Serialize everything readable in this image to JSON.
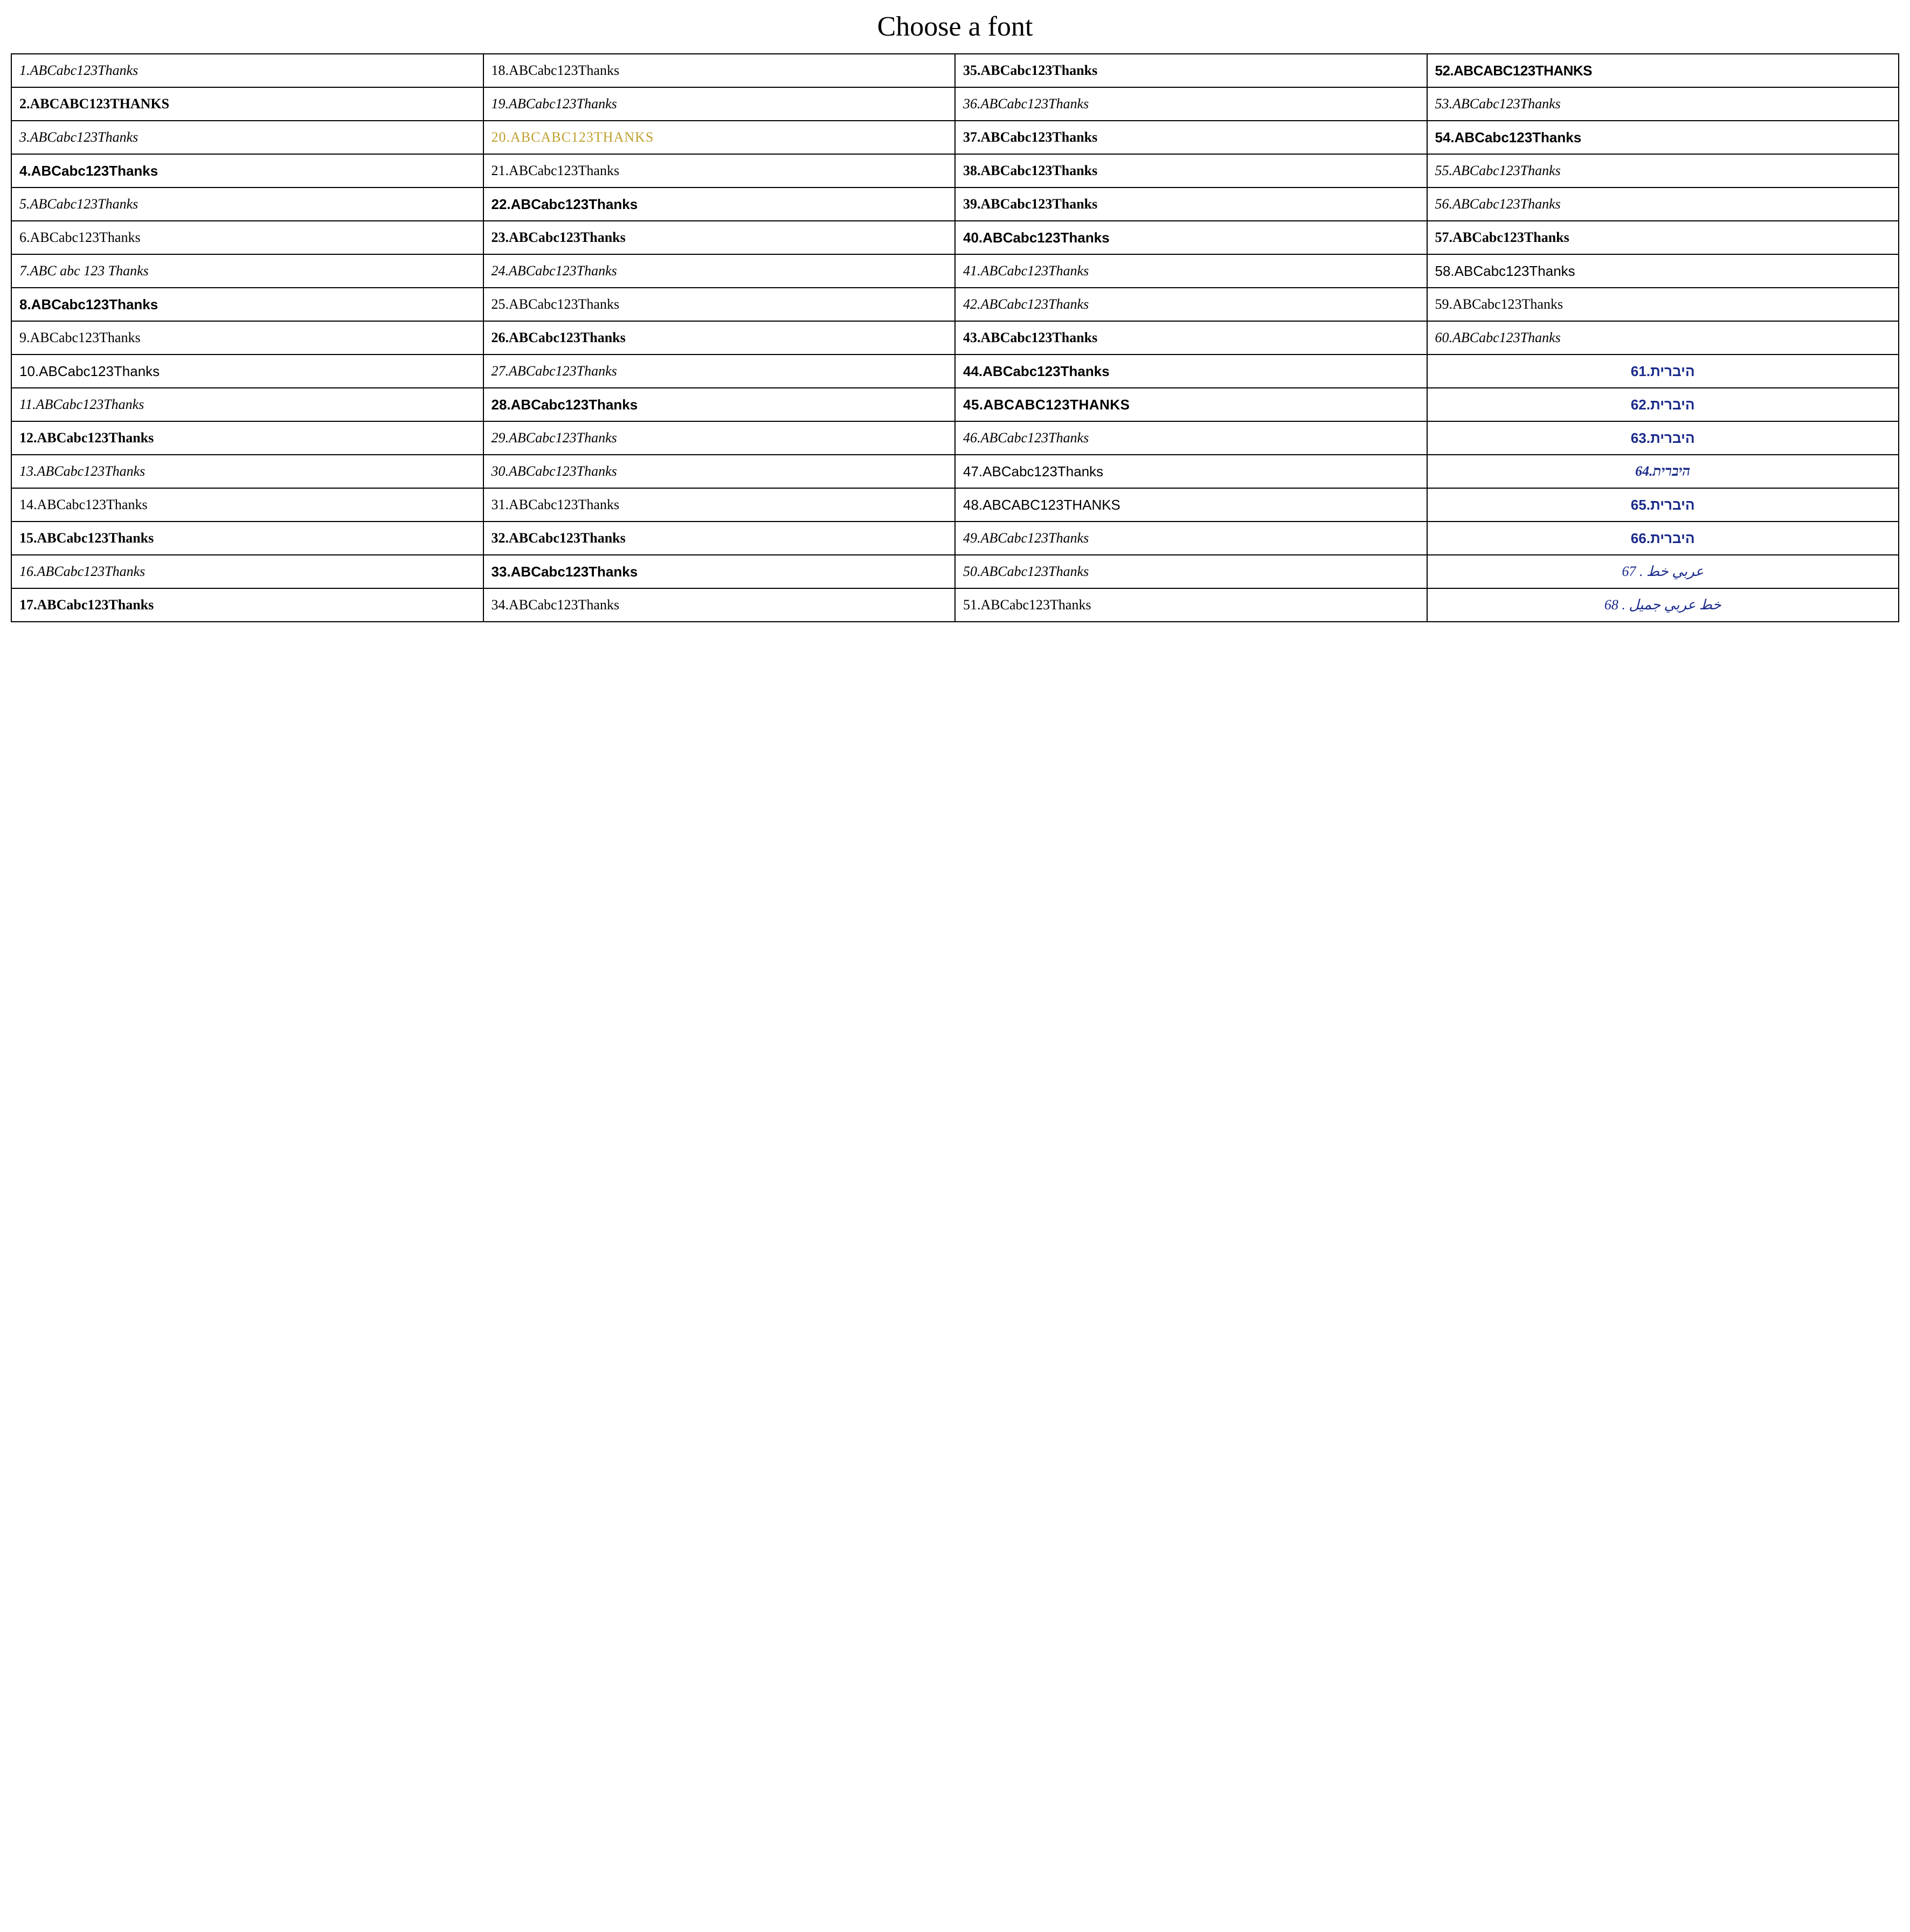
{
  "title": "Choose a font",
  "columns": 4,
  "rows": 17,
  "colors": {
    "text_default": "#000000",
    "text_gold": "#C0A030",
    "text_blue": "#1a2a8a",
    "border": "#000000",
    "background": "#ffffff"
  },
  "cells": [
    {
      "row": 0,
      "col": 0,
      "num": "1",
      "label": "1.ABCabc123Thanks",
      "styleClass": "f-script1"
    },
    {
      "row": 0,
      "col": 1,
      "num": "18",
      "label": "18.ABCabc123Thanks",
      "styleClass": "f-serif"
    },
    {
      "row": 0,
      "col": 2,
      "num": "35",
      "label": "35.ABCabc123Thanks",
      "styleClass": "f-bold-serif"
    },
    {
      "row": 0,
      "col": 3,
      "num": "52",
      "label": "52.ABCABC123THANKS",
      "styleClass": "f-bold-condense"
    },
    {
      "row": 1,
      "col": 0,
      "num": "2",
      "label": "2.ABCABC123THANKS",
      "styleClass": "f-gothic"
    },
    {
      "row": 1,
      "col": 1,
      "num": "19",
      "label": "19.ABCabc123Thanks",
      "styleClass": "f-script2"
    },
    {
      "row": 1,
      "col": 2,
      "num": "36",
      "label": "36.ABCabc123Thanks",
      "styleClass": "f-italic"
    },
    {
      "row": 1,
      "col": 3,
      "num": "53",
      "label": "53.ABCabc123Thanks",
      "styleClass": "f-italic"
    },
    {
      "row": 2,
      "col": 0,
      "num": "3",
      "label": "3.ABCabc123Thanks",
      "styleClass": "f-script1"
    },
    {
      "row": 2,
      "col": 1,
      "num": "20",
      "label": "20.ABCABC123THANKS",
      "styleClass": "f-gold"
    },
    {
      "row": 2,
      "col": 2,
      "num": "37",
      "label": "37.ABCabc123Thanks",
      "styleClass": "f-bold-serif"
    },
    {
      "row": 2,
      "col": 3,
      "num": "54",
      "label": "54.ABCabc123Thanks",
      "styleClass": "f-boldsans"
    },
    {
      "row": 3,
      "col": 0,
      "num": "4",
      "label": "4.ABCabc123Thanks",
      "styleClass": "f-boldsans"
    },
    {
      "row": 3,
      "col": 1,
      "num": "21",
      "label": "21.ABCabc123Thanks",
      "styleClass": "f-hand"
    },
    {
      "row": 3,
      "col": 2,
      "num": "38",
      "label": "38.ABCabc123Thanks",
      "styleClass": "f-bold-serif"
    },
    {
      "row": 3,
      "col": 3,
      "num": "55",
      "label": "55.ABCabc123Thanks",
      "styleClass": "f-script1"
    },
    {
      "row": 4,
      "col": 0,
      "num": "5",
      "label": "5.ABCabc123Thanks",
      "styleClass": "f-script2"
    },
    {
      "row": 4,
      "col": 1,
      "num": "22",
      "label": "22.ABCabc123Thanks",
      "styleClass": "f-boldsans"
    },
    {
      "row": 4,
      "col": 2,
      "num": "39",
      "label": "39.ABCabc123Thanks",
      "styleClass": "f-bold-serif"
    },
    {
      "row": 4,
      "col": 3,
      "num": "56",
      "label": "56.ABCabc123Thanks",
      "styleClass": "f-script2"
    },
    {
      "row": 5,
      "col": 0,
      "num": "6",
      "label": "6.ABCabc123Thanks",
      "styleClass": "f-hand"
    },
    {
      "row": 5,
      "col": 1,
      "num": "23",
      "label": "23.ABCabc123Thanks",
      "styleClass": "f-bold-serif"
    },
    {
      "row": 5,
      "col": 2,
      "num": "40",
      "label": "40.ABCabc123Thanks",
      "styleClass": "f-boldsans"
    },
    {
      "row": 5,
      "col": 3,
      "num": "57",
      "label": "57.ABCabc123Thanks",
      "styleClass": "f-bold-serif"
    },
    {
      "row": 6,
      "col": 0,
      "num": "7",
      "label": "7.ABC abc 123 Thanks",
      "styleClass": "f-thin-script"
    },
    {
      "row": 6,
      "col": 1,
      "num": "24",
      "label": "24.ABCabc123Thanks",
      "styleClass": "f-script1"
    },
    {
      "row": 6,
      "col": 2,
      "num": "41",
      "label": "41.ABCabc123Thanks",
      "styleClass": "f-script1"
    },
    {
      "row": 6,
      "col": 3,
      "num": "58",
      "label": "58.ABCabc123Thanks",
      "styleClass": "f-sans"
    },
    {
      "row": 7,
      "col": 0,
      "num": "8",
      "label": "8.ABCabc123Thanks",
      "styleClass": "f-boldsans"
    },
    {
      "row": 7,
      "col": 1,
      "num": "25",
      "label": "25.ABCabc123Thanks",
      "styleClass": "f-hand"
    },
    {
      "row": 7,
      "col": 2,
      "num": "42",
      "label": "42.ABCabc123Thanks",
      "styleClass": "f-script2"
    },
    {
      "row": 7,
      "col": 3,
      "num": "59",
      "label": "59.ABCabc123Thanks",
      "styleClass": "f-hand"
    },
    {
      "row": 8,
      "col": 0,
      "num": "9",
      "label": "9.ABCabc123Thanks",
      "styleClass": "f-hand"
    },
    {
      "row": 8,
      "col": 1,
      "num": "26",
      "label": "26.ABCabc123Thanks",
      "styleClass": "f-bold-serif"
    },
    {
      "row": 8,
      "col": 2,
      "num": "43",
      "label": "43.ABCabc123Thanks",
      "styleClass": "f-bold-serif"
    },
    {
      "row": 8,
      "col": 3,
      "num": "60",
      "label": "60.ABCabc123Thanks",
      "styleClass": "f-thin-script"
    },
    {
      "row": 9,
      "col": 0,
      "num": "10",
      "label": "10.ABCabc123Thanks",
      "styleClass": "f-sans"
    },
    {
      "row": 9,
      "col": 1,
      "num": "27",
      "label": "27.ABCabc123Thanks",
      "styleClass": "f-script2"
    },
    {
      "row": 9,
      "col": 2,
      "num": "44",
      "label": "44.ABCabc123Thanks",
      "styleClass": "f-boldsans"
    },
    {
      "row": 9,
      "col": 3,
      "num": "61",
      "label": "61.היברית",
      "styleClass": "f-blue col4"
    },
    {
      "row": 10,
      "col": 0,
      "num": "11",
      "label": "11.ABCabc123Thanks",
      "styleClass": "f-script1"
    },
    {
      "row": 10,
      "col": 1,
      "num": "28",
      "label": "28.ABCabc123Thanks",
      "styleClass": "f-boldsans"
    },
    {
      "row": 10,
      "col": 2,
      "num": "45",
      "label": "45.ABCABC123THANKS",
      "styleClass": "f-outline"
    },
    {
      "row": 10,
      "col": 3,
      "num": "62",
      "label": "62.היברית",
      "styleClass": "f-blue col4"
    },
    {
      "row": 11,
      "col": 0,
      "num": "12",
      "label": "12.ABCabc123Thanks",
      "styleClass": "f-bold-serif"
    },
    {
      "row": 11,
      "col": 1,
      "num": "29",
      "label": "29.ABCabc123Thanks",
      "styleClass": "f-script1"
    },
    {
      "row": 11,
      "col": 2,
      "num": "46",
      "label": "46.ABCabc123Thanks",
      "styleClass": "f-script2"
    },
    {
      "row": 11,
      "col": 3,
      "num": "63",
      "label": "63.היברית",
      "styleClass": "f-blue col4"
    },
    {
      "row": 12,
      "col": 0,
      "num": "13",
      "label": "13.ABCabc123Thanks",
      "styleClass": "f-script2"
    },
    {
      "row": 12,
      "col": 1,
      "num": "30",
      "label": "30.ABCabc123Thanks",
      "styleClass": "f-thin-script"
    },
    {
      "row": 12,
      "col": 2,
      "num": "47",
      "label": "47.ABCabc123Thanks",
      "styleClass": "f-sans"
    },
    {
      "row": 12,
      "col": 3,
      "num": "64",
      "label": "64.היברית",
      "styleClass": "f-blue-script col4"
    },
    {
      "row": 13,
      "col": 0,
      "num": "14",
      "label": "14.ABCabc123Thanks",
      "styleClass": "f-serif"
    },
    {
      "row": 13,
      "col": 1,
      "num": "31",
      "label": "31.ABCabc123Thanks",
      "styleClass": "f-hand"
    },
    {
      "row": 13,
      "col": 2,
      "num": "48",
      "label": "48.ABCABC123THANKS",
      "styleClass": "f-narrow"
    },
    {
      "row": 13,
      "col": 3,
      "num": "65",
      "label": "65.היברית",
      "styleClass": "f-blue col4"
    },
    {
      "row": 14,
      "col": 0,
      "num": "15",
      "label": "15.ABCabc123Thanks",
      "styleClass": "f-bold-serif"
    },
    {
      "row": 14,
      "col": 1,
      "num": "32",
      "label": "32.ABCabc123Thanks",
      "styleClass": "f-bold-serif"
    },
    {
      "row": 14,
      "col": 2,
      "num": "49",
      "label": "49.ABCabc123Thanks",
      "styleClass": "f-script1"
    },
    {
      "row": 14,
      "col": 3,
      "num": "66",
      "label": "66.היברית",
      "styleClass": "f-blue col4"
    },
    {
      "row": 15,
      "col": 0,
      "num": "16",
      "label": "16.ABCabc123Thanks",
      "styleClass": "f-thin-script"
    },
    {
      "row": 15,
      "col": 1,
      "num": "33",
      "label": "33.ABCabc123Thanks",
      "styleClass": "f-boldsans"
    },
    {
      "row": 15,
      "col": 2,
      "num": "50",
      "label": "50.ABCabc123Thanks",
      "styleClass": "f-script2"
    },
    {
      "row": 15,
      "col": 3,
      "num": "67",
      "label": "67 . عربي خط",
      "styleClass": "f-blue-arabic col4"
    },
    {
      "row": 16,
      "col": 0,
      "num": "17",
      "label": "17.ABCabc123Thanks",
      "styleClass": "f-bold-serif"
    },
    {
      "row": 16,
      "col": 1,
      "num": "34",
      "label": "34.ABCabc123Thanks",
      "styleClass": "f-serif"
    },
    {
      "row": 16,
      "col": 2,
      "num": "51",
      "label": "51.ABCabc123Thanks",
      "styleClass": "f-serif"
    },
    {
      "row": 16,
      "col": 3,
      "num": "68",
      "label": "68 . خط عربي جميل",
      "styleClass": "f-blue-arabic col4"
    }
  ]
}
